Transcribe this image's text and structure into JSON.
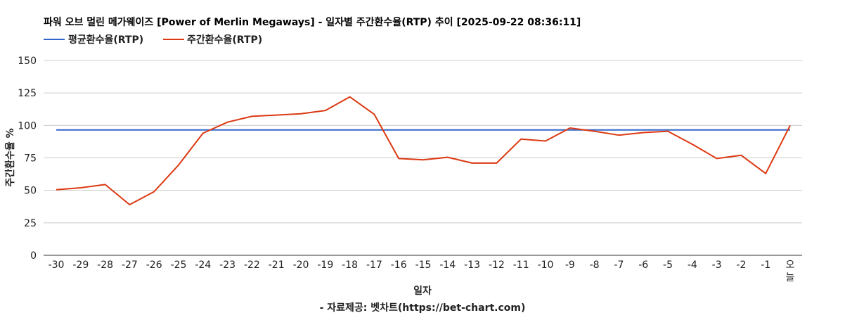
{
  "chart_data": {
    "type": "line",
    "title": "파워 오브 멀린 메가웨이즈 [Power of Merlin Megaways] - 일자별 주간환수율(RTP) 추이 [2025-09-22 08:36:11]",
    "xlabel": "일자",
    "ylabel": "주간환수율 %",
    "source": "- 자료제공: 벳차트(https://bet-chart.com)",
    "ylim": [
      0,
      150
    ],
    "yticks": [
      "0",
      "25",
      "50",
      "75",
      "100",
      "125",
      "150"
    ],
    "categories": [
      "-30",
      "-29",
      "-28",
      "-27",
      "-26",
      "-25",
      "-24",
      "-23",
      "-22",
      "-21",
      "-20",
      "-19",
      "-18",
      "-17",
      "-16",
      "-15",
      "-14",
      "-13",
      "-12",
      "-11",
      "-10",
      "-9",
      "-8",
      "-7",
      "-6",
      "-5",
      "-4",
      "-3",
      "-2",
      "-1",
      "오늘"
    ],
    "grid": true,
    "legend_position": "top-left",
    "series": [
      {
        "name": "평균환수율(RTP)",
        "color": "#3366cc",
        "values": [
          96.5,
          96.5,
          96.5,
          96.5,
          96.5,
          96.5,
          96.5,
          96.5,
          96.5,
          96.5,
          96.5,
          96.5,
          96.5,
          96.5,
          96.5,
          96.5,
          96.5,
          96.5,
          96.5,
          96.5,
          96.5,
          96.5,
          96.5,
          96.5,
          96.5,
          96.5,
          96.5,
          96.5,
          96.5,
          96.5,
          96.5
        ]
      },
      {
        "name": "주간환수율(RTP)",
        "color": "#dc3912",
        "values": [
          50.5,
          52,
          54.5,
          39,
          49,
          69.5,
          94,
          102.5,
          107,
          108,
          109,
          111.5,
          122,
          108.5,
          74.5,
          73.5,
          75.5,
          71,
          71,
          89.5,
          88,
          98,
          95.5,
          92.5,
          94.5,
          95.5,
          85.5,
          74.5,
          77,
          63,
          100
        ]
      }
    ]
  }
}
